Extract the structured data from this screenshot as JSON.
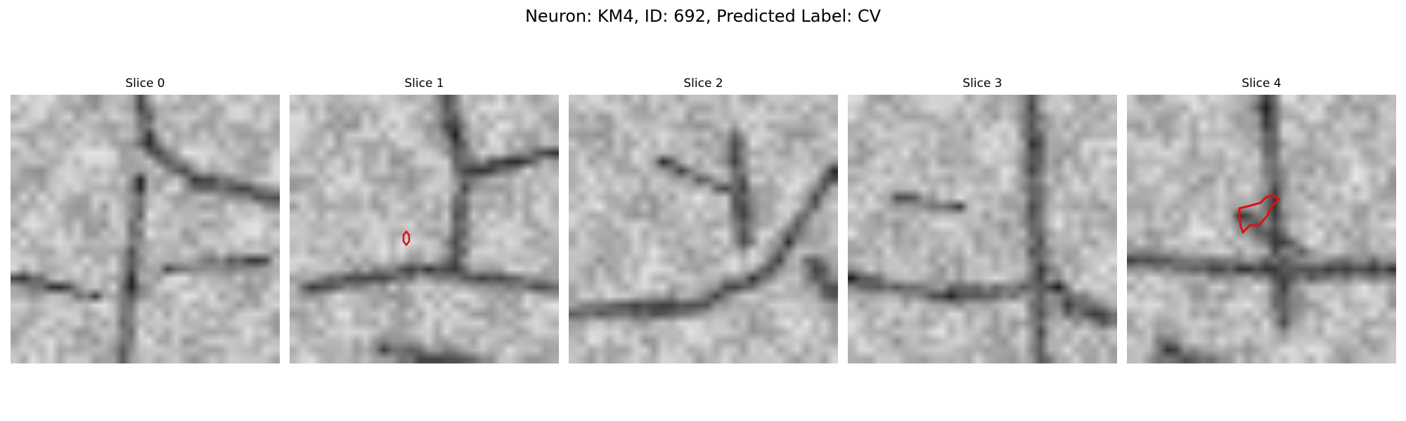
{
  "figure": {
    "title": "Neuron: KM4, ID: 692, Predicted Label: CV"
  },
  "panels": [
    {
      "title": "Slice 0"
    },
    {
      "title": "Slice 1"
    },
    {
      "title": "Slice 2"
    },
    {
      "title": "Slice 3"
    },
    {
      "title": "Slice 4"
    }
  ],
  "colors": {
    "contour": "#e01010",
    "colormap": "grayscale"
  }
}
